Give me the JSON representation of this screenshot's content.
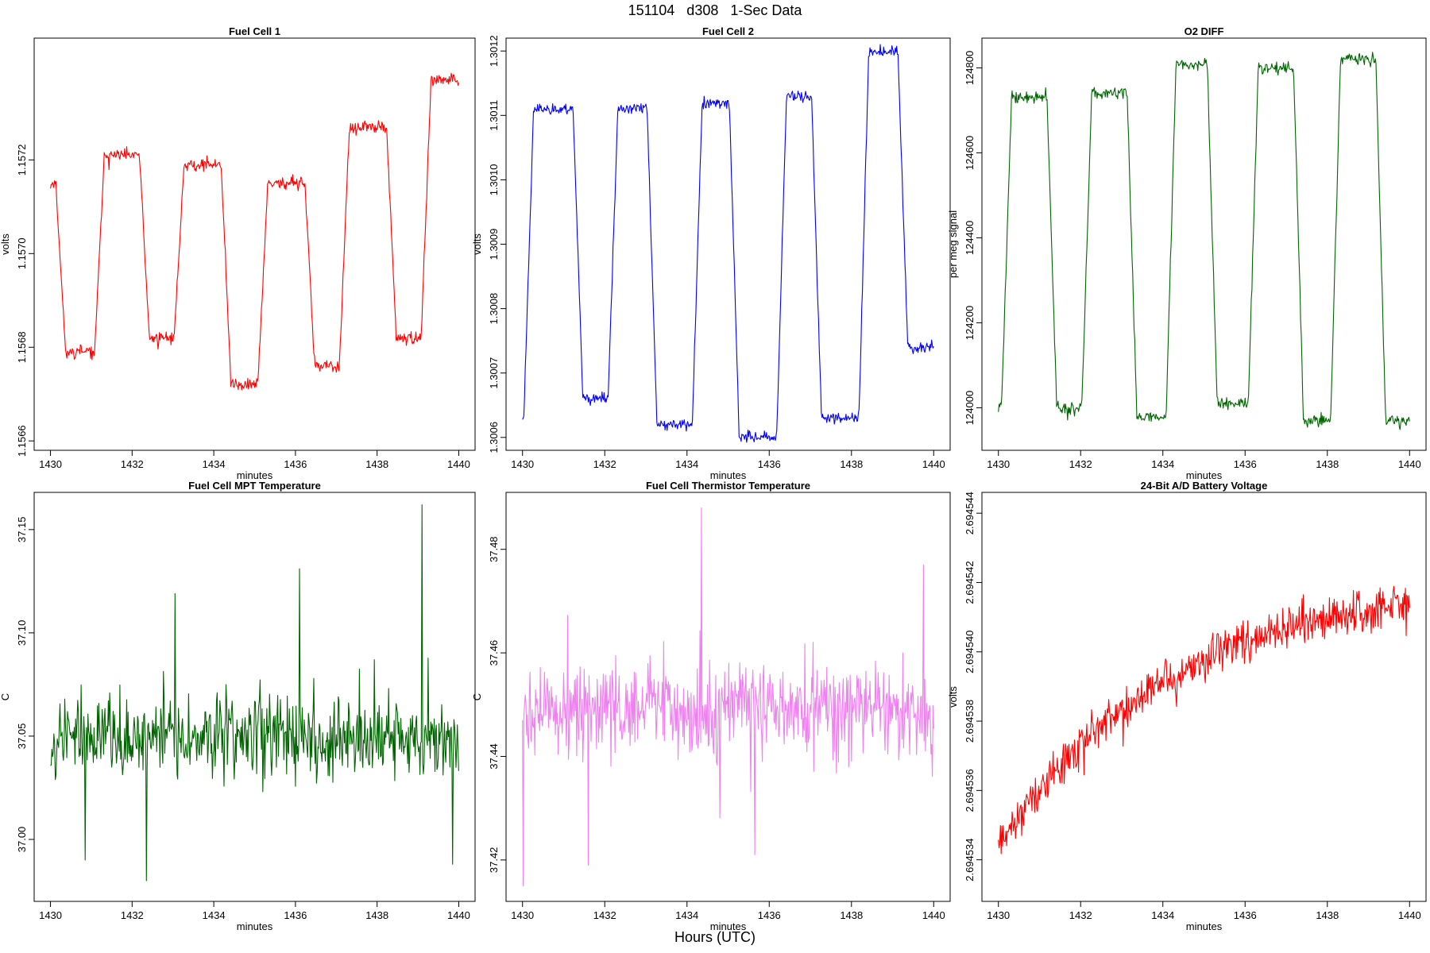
{
  "page": {
    "title": "151104   d308   1-Sec Data",
    "footer": "Hours (UTC)"
  },
  "chart_data": [
    {
      "type": "line",
      "title": "Fuel Cell 1",
      "xlabel": "minutes",
      "ylabel": "volts",
      "color": "#ff0000",
      "xlim": [
        1429.6,
        1440.4
      ],
      "ylim": [
        1.15658,
        1.15746
      ],
      "xticks": [
        1430,
        1432,
        1434,
        1436,
        1438,
        1440
      ],
      "xtick_labels": [
        "1430",
        "1432",
        "1434",
        "1436",
        "1438",
        "1440"
      ],
      "yticks": [
        1.1566,
        1.1568,
        1.157,
        1.1572
      ],
      "ytick_labels": [
        "1.1566",
        "1.1568",
        "1.1570",
        "1.1572"
      ],
      "signal": {
        "levels": [
          1.15715,
          1.15679,
          1.15721,
          1.15682,
          1.15719,
          1.15672,
          1.15715,
          1.15676,
          1.15727,
          1.15682,
          1.15737
        ],
        "transitions": [
          1430.25,
          1431.2,
          1432.3,
          1433.15,
          1434.3,
          1435.2,
          1436.35,
          1437.2,
          1438.35,
          1439.2
        ],
        "noise": 1.2e-05,
        "spike": 2e-05,
        "seed": 11
      }
    },
    {
      "type": "line",
      "title": "Fuel Cell 2",
      "xlabel": "minutes",
      "ylabel": "volts",
      "color": "#0000ff",
      "xlim": [
        1429.6,
        1440.4
      ],
      "ylim": [
        1.30058,
        1.30122
      ],
      "xticks": [
        1430,
        1432,
        1434,
        1436,
        1438,
        1440
      ],
      "xtick_labels": [
        "1430",
        "1432",
        "1434",
        "1436",
        "1438",
        "1440"
      ],
      "yticks": [
        1.3006,
        1.3007,
        1.3008,
        1.3009,
        1.301,
        1.3011,
        1.3012
      ],
      "ytick_labels": [
        "1.3006",
        "1.3007",
        "1.3008",
        "1.3009",
        "1.3010",
        "1.3011",
        "1.3012"
      ],
      "signal": {
        "levels": [
          1.30063,
          1.30111,
          1.30066,
          1.30111,
          1.30062,
          1.30112,
          1.3006,
          1.30113,
          1.30063,
          1.3012,
          1.30074
        ],
        "transitions": [
          1430.15,
          1431.35,
          1432.2,
          1433.15,
          1434.25,
          1435.15,
          1436.3,
          1437.15,
          1438.3,
          1439.25
        ],
        "noise": 8e-06,
        "spike": 1e-05,
        "seed": 23
      }
    },
    {
      "type": "line",
      "title": "O2 DIFF",
      "xlabel": "minutes",
      "ylabel": "per meg signal",
      "color": "#006400",
      "xlim": [
        1429.6,
        1440.4
      ],
      "ylim": [
        123900,
        124870
      ],
      "xticks": [
        1430,
        1432,
        1434,
        1436,
        1438,
        1440
      ],
      "xtick_labels": [
        "1430",
        "1432",
        "1434",
        "1436",
        "1438",
        "1440"
      ],
      "yticks": [
        124000,
        124200,
        124400,
        124600,
        124800
      ],
      "ytick_labels": [
        "124000",
        "124200",
        "124400",
        "124600",
        "124800"
      ],
      "signal": {
        "levels": [
          124010,
          124730,
          124000,
          124740,
          123980,
          124810,
          124010,
          124800,
          123970,
          124820,
          123970
        ],
        "transitions": [
          1430.2,
          1431.3,
          1432.15,
          1433.25,
          1434.2,
          1435.2,
          1436.2,
          1437.3,
          1438.2,
          1439.3
        ],
        "noise": 14,
        "spike": 20,
        "seed": 37
      }
    },
    {
      "type": "line",
      "title": "Fuel Cell MPT Temperature",
      "xlabel": "minutes",
      "ylabel": "C",
      "color": "#006400",
      "xlim": [
        1429.6,
        1440.4
      ],
      "ylim": [
        36.97,
        37.168
      ],
      "xticks": [
        1430,
        1432,
        1434,
        1436,
        1438,
        1440
      ],
      "xtick_labels": [
        "1430",
        "1432",
        "1434",
        "1436",
        "1438",
        "1440"
      ],
      "yticks": [
        37.0,
        37.05,
        37.1,
        37.15
      ],
      "ytick_labels": [
        "37.00",
        "37.05",
        "37.10",
        "37.15"
      ],
      "signal": {
        "mean": 37.05,
        "noise": 0.018,
        "spike": 0.03,
        "seed": 53,
        "peaks": [
          [
            1432.35,
            36.98
          ],
          [
            1433.05,
            37.119
          ],
          [
            1436.1,
            37.131
          ],
          [
            1439.1,
            37.162
          ],
          [
            1430.85,
            36.99
          ],
          [
            1439.85,
            36.988
          ]
        ]
      }
    },
    {
      "type": "line",
      "title": "Fuel Cell Thermistor Temperature",
      "xlabel": "minutes",
      "ylabel": "C",
      "color": "#ee82ee",
      "xlim": [
        1429.6,
        1440.4
      ],
      "ylim": [
        37.412,
        37.491
      ],
      "xticks": [
        1430,
        1432,
        1434,
        1436,
        1438,
        1440
      ],
      "xtick_labels": [
        "1430",
        "1432",
        "1434",
        "1436",
        "1438",
        "1440"
      ],
      "yticks": [
        37.42,
        37.44,
        37.46,
        37.48
      ],
      "ytick_labels": [
        "37.42",
        "37.44",
        "37.46",
        "37.48"
      ],
      "signal": {
        "mean": 37.449,
        "noise": 0.008,
        "spike": 0.012,
        "seed": 71,
        "peaks": [
          [
            1430.02,
            37.415
          ],
          [
            1431.6,
            37.419
          ],
          [
            1434.35,
            37.488
          ],
          [
            1435.65,
            37.421
          ],
          [
            1439.75,
            37.477
          ]
        ]
      }
    },
    {
      "type": "line",
      "title": "24-Bit A/D Battery Voltage",
      "xlabel": "minutes",
      "ylabel": "volts",
      "color": "#ff0000",
      "xlim": [
        1429.6,
        1440.4
      ],
      "ylim": [
        2.6945328,
        2.6945446
      ],
      "xticks": [
        1430,
        1432,
        1434,
        1436,
        1438,
        1440
      ],
      "xtick_labels": [
        "1430",
        "1432",
        "1434",
        "1436",
        "1438",
        "1440"
      ],
      "yticks": [
        2.694534,
        2.694536,
        2.694538,
        2.69454,
        2.694542,
        2.694544
      ],
      "ytick_labels": [
        "2.694534",
        "2.694536",
        "2.694538",
        "2.694540",
        "2.694542",
        "2.694544"
      ],
      "signal": {
        "start": 2.6945344,
        "end": 2.6945414,
        "rate": 0.42,
        "noise": 6e-07,
        "spike": 9e-07,
        "seed": 89
      }
    }
  ]
}
